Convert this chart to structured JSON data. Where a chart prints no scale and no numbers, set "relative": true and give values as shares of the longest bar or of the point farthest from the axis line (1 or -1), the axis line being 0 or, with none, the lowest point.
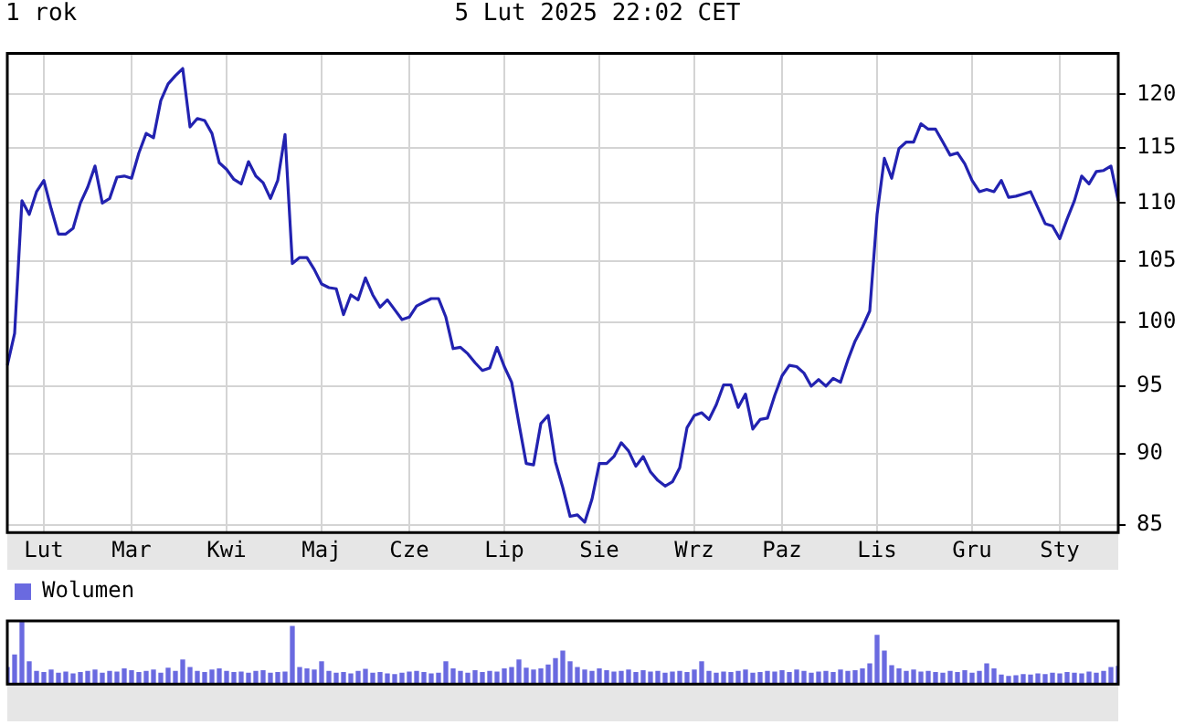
{
  "chart_data": [
    {
      "type": "line",
      "title": "1 rok",
      "subtitle": "5 Lut 2025 22:02 CET",
      "color": "#2222b0",
      "marker": "none",
      "log": true,
      "grid": true,
      "categories": [
        null,
        null,
        null,
        null,
        null,
        "Lut",
        null,
        null,
        null,
        null,
        null,
        null,
        null,
        null,
        null,
        null,
        null,
        "Mar",
        null,
        null,
        null,
        null,
        null,
        null,
        null,
        null,
        null,
        null,
        null,
        null,
        "Kwi",
        null,
        null,
        null,
        null,
        null,
        null,
        null,
        null,
        null,
        null,
        null,
        null,
        "Maj",
        null,
        null,
        null,
        null,
        null,
        null,
        null,
        null,
        null,
        null,
        null,
        "Cze",
        null,
        null,
        null,
        null,
        null,
        null,
        null,
        null,
        null,
        null,
        null,
        null,
        "Lip",
        null,
        null,
        null,
        null,
        null,
        null,
        null,
        null,
        null,
        null,
        null,
        null,
        "Sie",
        null,
        null,
        null,
        null,
        null,
        null,
        null,
        null,
        null,
        null,
        null,
        null,
        "Wrz",
        null,
        null,
        null,
        null,
        null,
        null,
        null,
        null,
        null,
        null,
        null,
        "Paz",
        null,
        null,
        null,
        null,
        null,
        null,
        null,
        null,
        null,
        null,
        null,
        null,
        "Lis",
        null,
        null,
        null,
        null,
        null,
        null,
        null,
        null,
        null,
        null,
        null,
        null,
        "Gru",
        null,
        null,
        null,
        null,
        null,
        null,
        null,
        null,
        null,
        null,
        null,
        "Sty",
        null,
        null,
        null,
        null,
        null,
        null,
        null,
        null
      ],
      "values": [
        96.6,
        99.1,
        110.2,
        109.0,
        111.0,
        112.0,
        109.5,
        107.3,
        107.3,
        107.8,
        110.0,
        111.4,
        113.3,
        110.0,
        110.4,
        112.3,
        112.4,
        112.2,
        114.5,
        116.3,
        115.9,
        119.4,
        121.0,
        121.8,
        122.5,
        116.9,
        117.7,
        117.5,
        116.3,
        113.6,
        113.0,
        112.1,
        111.7,
        113.7,
        112.4,
        111.8,
        110.4,
        112.0,
        116.2,
        104.8,
        105.3,
        105.3,
        104.3,
        103.1,
        102.8,
        102.7,
        100.6,
        102.2,
        101.8,
        103.6,
        102.2,
        101.2,
        101.8,
        101.0,
        100.2,
        100.4,
        101.3,
        101.6,
        101.9,
        101.9,
        100.4,
        97.9,
        98.0,
        97.5,
        96.8,
        96.2,
        96.4,
        98.0,
        96.5,
        95.3,
        92.2,
        89.3,
        89.2,
        92.2,
        92.8,
        89.4,
        87.6,
        85.6,
        85.7,
        85.2,
        86.8,
        89.3,
        89.3,
        89.8,
        90.8,
        90.2,
        89.1,
        89.8,
        88.7,
        88.1,
        87.7,
        88.0,
        89.0,
        91.9,
        92.8,
        93.0,
        92.5,
        93.6,
        95.1,
        95.1,
        93.4,
        94.4,
        91.8,
        92.5,
        92.6,
        94.3,
        95.8,
        96.6,
        96.5,
        96.0,
        95.0,
        95.5,
        95.0,
        95.6,
        95.3,
        97.0,
        98.5,
        99.6,
        100.9,
        109.0,
        114.0,
        112.2,
        114.9,
        115.5,
        115.5,
        117.2,
        116.7,
        116.7,
        115.5,
        114.3,
        114.5,
        113.5,
        112.0,
        111.0,
        111.2,
        111.0,
        112.0,
        110.5,
        110.6,
        110.8,
        111.0,
        109.6,
        108.2,
        108.0,
        106.9,
        108.6,
        110.2,
        112.4,
        111.7,
        112.8,
        112.9,
        113.3,
        110.2
      ],
      "ylim": [
        84.5,
        124
      ],
      "yticks": [
        85,
        90,
        95,
        100,
        105,
        110,
        115,
        120
      ]
    },
    {
      "type": "bar",
      "relative": true,
      "legend": "top left",
      "categories": [
        null,
        null,
        null,
        null,
        null,
        null,
        null,
        null,
        null,
        null,
        null,
        null,
        null,
        null,
        null,
        null,
        null,
        null,
        null,
        null,
        null,
        null,
        null,
        null,
        null,
        null,
        null,
        null,
        null,
        null,
        null,
        null,
        null,
        null,
        null,
        null,
        null,
        null,
        null,
        null,
        null,
        null,
        null,
        null,
        null,
        null,
        null,
        null,
        null,
        null,
        null,
        null,
        null,
        null,
        null,
        null,
        null,
        null,
        null,
        null,
        null,
        null,
        null,
        null,
        null,
        null,
        null,
        null,
        null,
        null,
        null,
        null,
        null,
        null,
        null,
        null,
        null,
        null,
        null,
        null,
        null,
        null,
        null,
        null,
        null,
        null,
        null,
        null,
        null,
        null,
        null,
        null,
        null,
        null,
        null,
        null,
        null,
        null,
        null,
        null,
        null,
        null,
        null,
        null,
        null,
        null,
        null,
        null,
        null,
        null,
        null,
        null,
        null,
        null,
        null,
        null,
        null,
        null,
        null,
        null,
        null,
        null,
        null,
        null,
        null,
        null,
        null,
        null,
        null,
        null,
        null,
        null,
        null,
        null,
        null,
        null,
        null,
        null,
        null,
        null,
        null,
        null,
        null,
        null,
        null,
        null,
        null,
        null,
        null,
        null,
        null,
        null,
        null
      ],
      "series": [
        {
          "name": "Wolumen",
          "color": "#6a6ae0",
          "values": [
            0.26,
            0.46,
            1.0,
            0.35,
            0.2,
            0.18,
            0.22,
            0.17,
            0.19,
            0.16,
            0.18,
            0.2,
            0.22,
            0.17,
            0.2,
            0.19,
            0.24,
            0.21,
            0.18,
            0.2,
            0.22,
            0.17,
            0.25,
            0.2,
            0.38,
            0.26,
            0.2,
            0.18,
            0.22,
            0.24,
            0.2,
            0.18,
            0.19,
            0.17,
            0.2,
            0.21,
            0.17,
            0.18,
            0.19,
            0.91,
            0.26,
            0.24,
            0.22,
            0.35,
            0.2,
            0.17,
            0.18,
            0.16,
            0.2,
            0.23,
            0.17,
            0.18,
            0.16,
            0.15,
            0.17,
            0.19,
            0.2,
            0.18,
            0.16,
            0.17,
            0.35,
            0.24,
            0.2,
            0.17,
            0.21,
            0.18,
            0.2,
            0.19,
            0.24,
            0.26,
            0.38,
            0.25,
            0.22,
            0.24,
            0.3,
            0.4,
            0.52,
            0.35,
            0.26,
            0.22,
            0.2,
            0.24,
            0.21,
            0.19,
            0.2,
            0.22,
            0.18,
            0.21,
            0.19,
            0.2,
            0.17,
            0.19,
            0.2,
            0.18,
            0.22,
            0.35,
            0.2,
            0.17,
            0.19,
            0.18,
            0.2,
            0.22,
            0.17,
            0.18,
            0.2,
            0.19,
            0.21,
            0.18,
            0.22,
            0.2,
            0.17,
            0.19,
            0.2,
            0.18,
            0.22,
            0.2,
            0.21,
            0.24,
            0.32,
            0.77,
            0.52,
            0.29,
            0.24,
            0.2,
            0.22,
            0.19,
            0.2,
            0.18,
            0.17,
            0.2,
            0.18,
            0.21,
            0.17,
            0.2,
            0.32,
            0.24,
            0.14,
            0.12,
            0.13,
            0.15,
            0.14,
            0.16,
            0.15,
            0.17,
            0.16,
            0.18,
            0.17,
            0.16,
            0.19,
            0.17,
            0.2,
            0.26,
            0.28
          ]
        }
      ]
    }
  ]
}
